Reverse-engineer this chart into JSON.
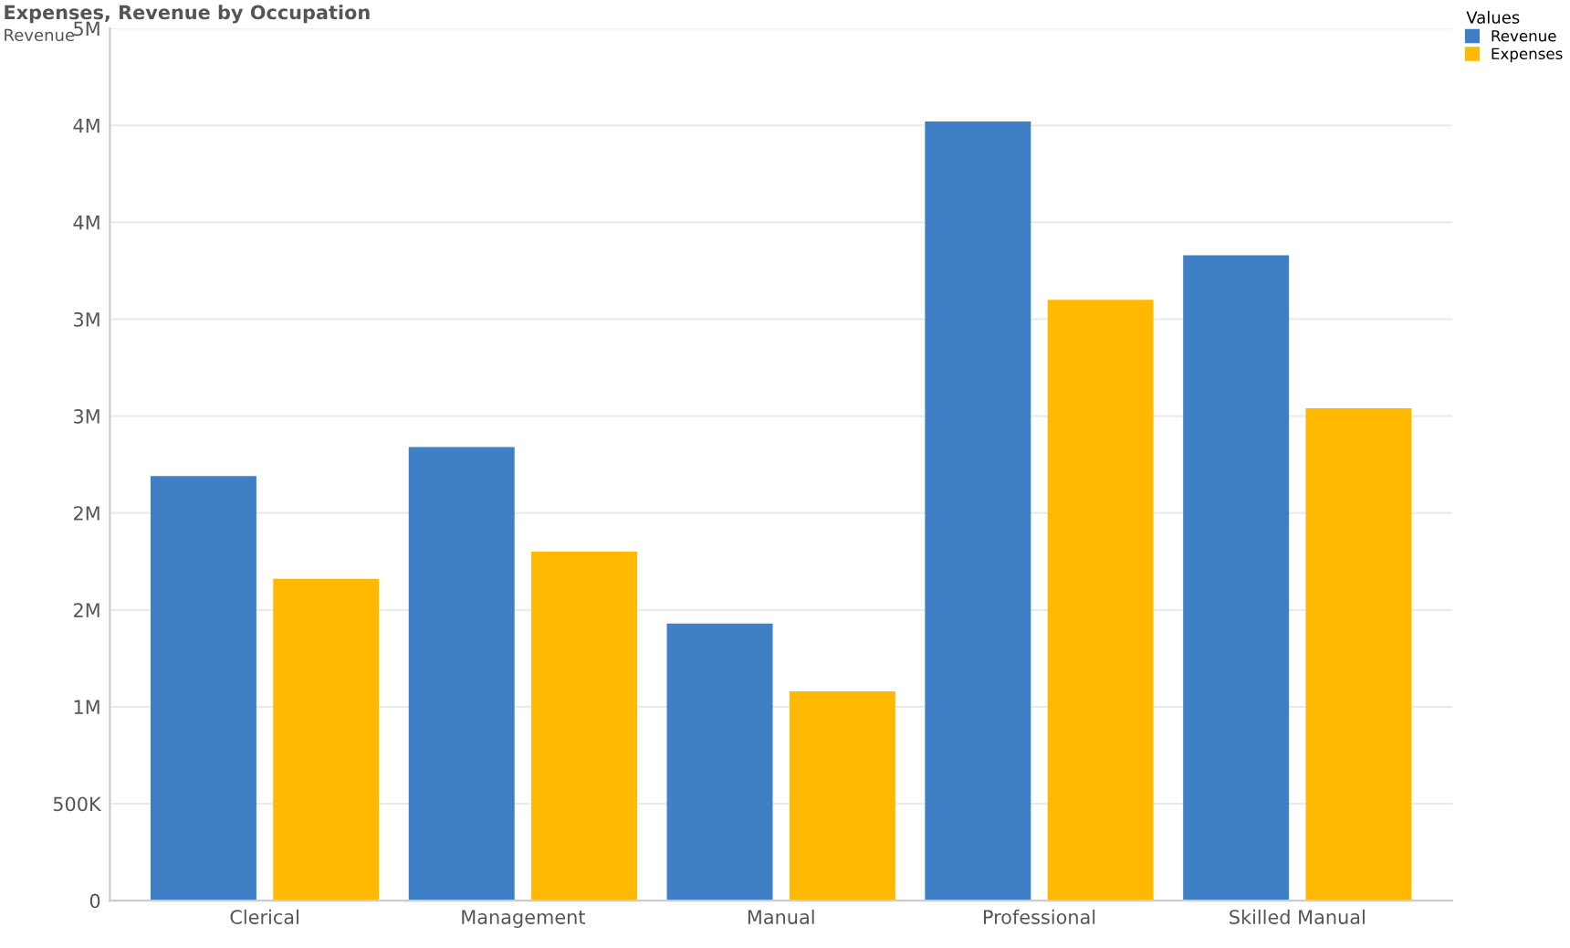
{
  "chart_data": {
    "type": "bar",
    "title": "Expenses, Revenue by Occupation",
    "ylabel": "Revenue",
    "legend_title": "Values",
    "categories": [
      "Clerical",
      "Management",
      "Manual",
      "Professional",
      "Skilled Manual"
    ],
    "series": [
      {
        "name": "Revenue",
        "color": "#3f7fc6",
        "values": [
          2190000,
          2340000,
          1430000,
          4020000,
          3330000
        ]
      },
      {
        "name": "Expenses",
        "color": "#ffb900",
        "values": [
          1660000,
          1800000,
          1080000,
          3100000,
          2540000
        ]
      }
    ],
    "ylim": [
      0,
      4500000
    ],
    "yticks": [
      0,
      {
        "value": 500000,
        "label": "500K"
      },
      {
        "value": 1000000,
        "label": "1M"
      },
      {
        "value": 1500000,
        "label": "2M"
      },
      {
        "value": 2000000,
        "label": "2M"
      },
      {
        "value": 2500000,
        "label": "3M"
      },
      {
        "value": 3000000,
        "label": "3M"
      },
      {
        "value": 3500000,
        "label": "4M"
      },
      {
        "value": 4000000,
        "label": "4M"
      },
      {
        "value": 4500000,
        "label": "5M"
      }
    ],
    "grid": "y",
    "legend": "top right"
  }
}
